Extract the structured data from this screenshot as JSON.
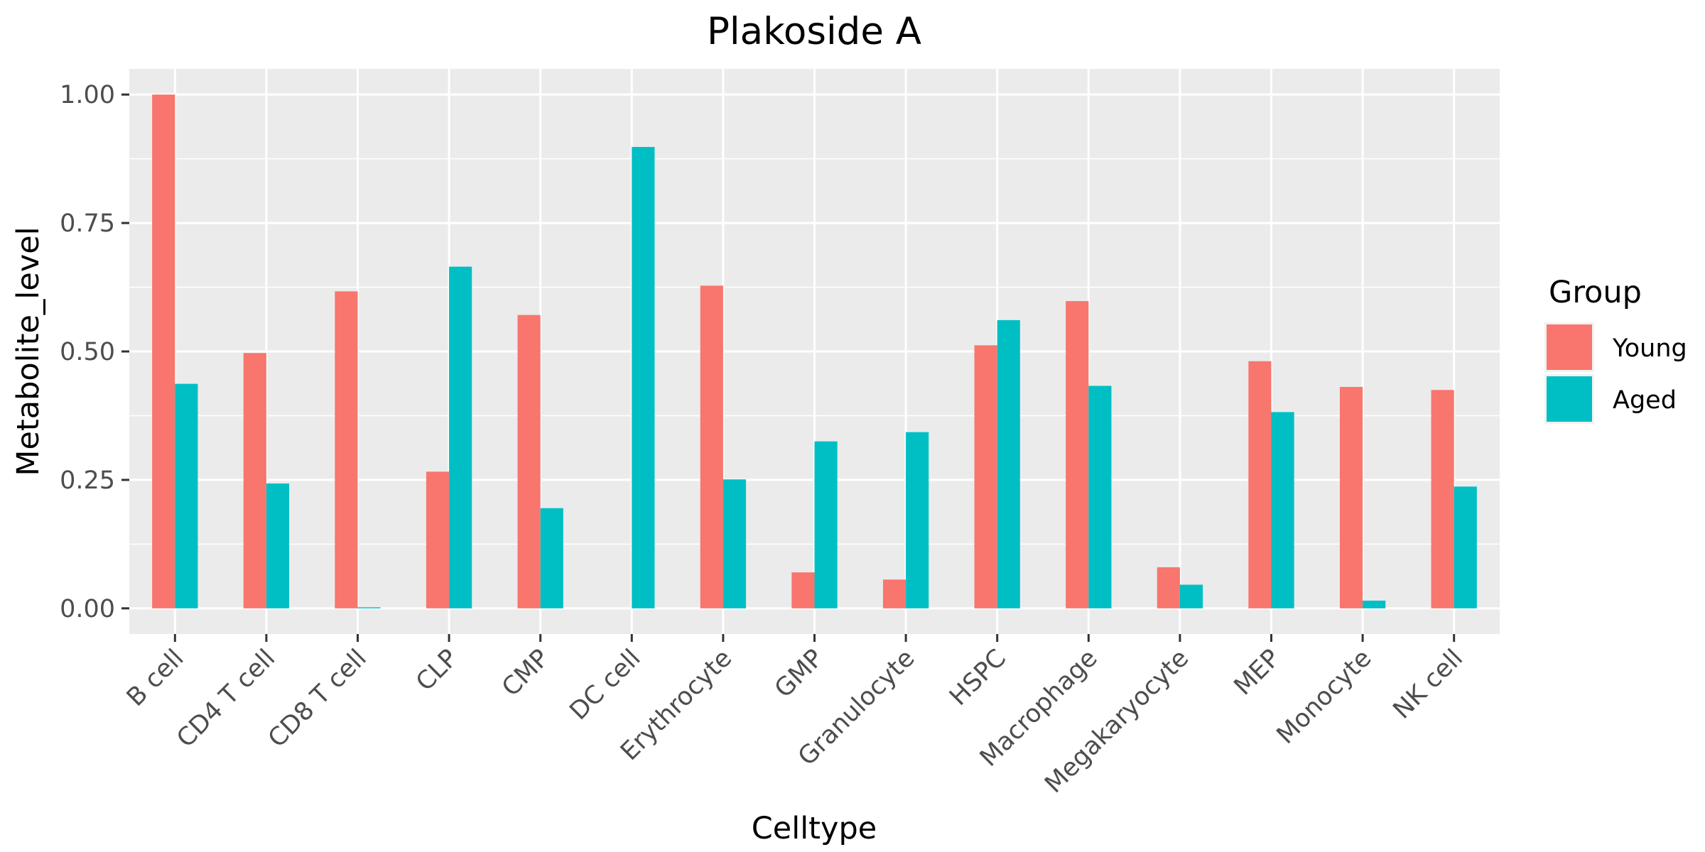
{
  "chart_data": {
    "type": "bar",
    "title": "Plakoside A",
    "xlabel": "Celltype",
    "ylabel": "Metabolite_level",
    "categories": [
      "B cell",
      "CD4 T cell",
      "CD8 T cell",
      "CLP",
      "CMP",
      "DC cell",
      "Erythrocyte",
      "GMP",
      "Granulocyte",
      "HSPC",
      "Macrophage",
      "Megakaryocyte",
      "MEP",
      "Monocyte",
      "NK cell"
    ],
    "series": [
      {
        "name": "Young",
        "color": "#F8766D",
        "values": [
          1.0,
          0.497,
          0.617,
          0.266,
          0.571,
          0.0,
          0.628,
          0.07,
          0.056,
          0.512,
          0.598,
          0.08,
          0.481,
          0.431,
          0.425
        ]
      },
      {
        "name": "Aged",
        "color": "#00BFC4",
        "values": [
          0.437,
          0.243,
          0.002,
          0.665,
          0.195,
          0.898,
          0.251,
          0.325,
          0.343,
          0.561,
          0.433,
          0.046,
          0.382,
          0.015,
          0.237
        ]
      }
    ],
    "ylim": [
      -0.05,
      1.05
    ],
    "yticks": [
      0.0,
      0.25,
      0.5,
      0.75,
      1.0
    ],
    "ytick_labels": [
      "0.00",
      "0.25",
      "0.50",
      "0.75",
      "1.00"
    ],
    "grid": true,
    "legend": {
      "title": "Group",
      "position": "right"
    },
    "panel_background": "#EBEBEB",
    "grid_color": "#FFFFFF"
  }
}
